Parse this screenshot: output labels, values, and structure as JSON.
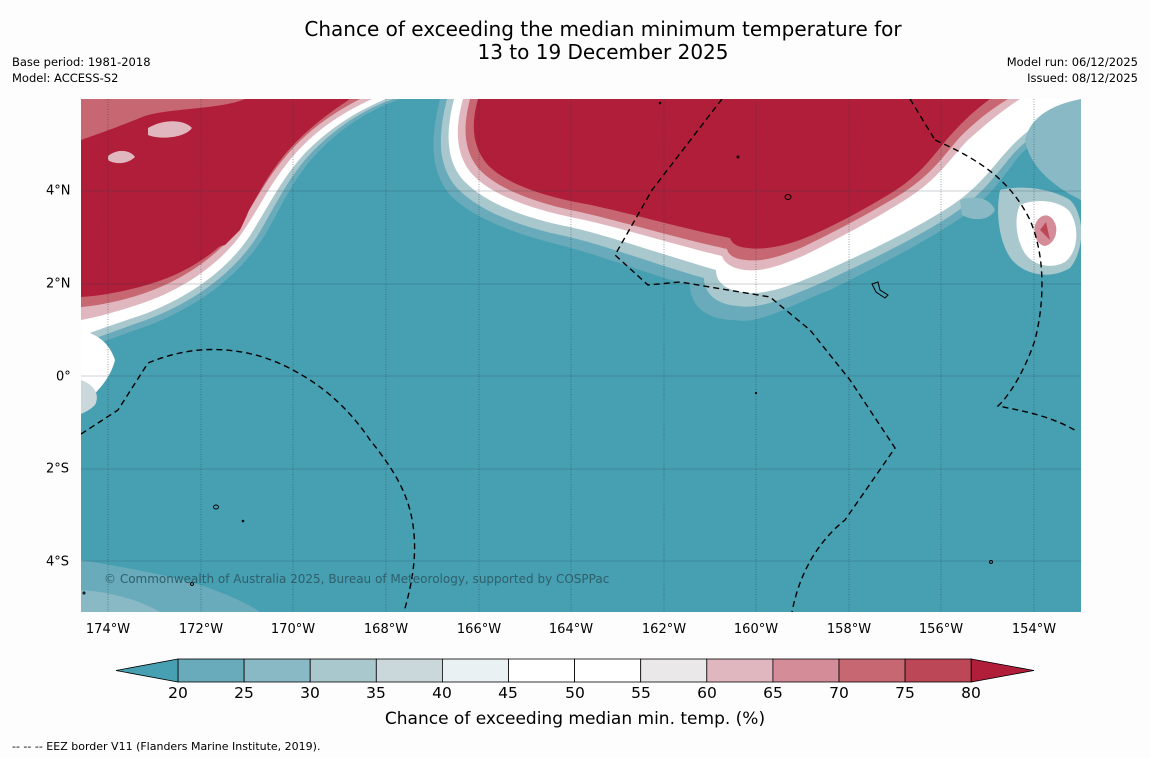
{
  "title_line1": "Chance of exceeding the median minimum temperature for",
  "title_line2": "13 to 19 December 2025",
  "base_period": "Base period: 1981-2018",
  "model": "Model: ACCESS-S2",
  "model_run": "Model run: 06/12/2025",
  "issued": "Issued: 08/12/2025",
  "longitude_labels": [
    "174°W",
    "172°W",
    "170°W",
    "168°W",
    "166°W",
    "164°W",
    "162°W",
    "160°W",
    "158°W",
    "156°W",
    "154°W"
  ],
  "latitude_labels": [
    "4°N",
    "2°N",
    "0°",
    "2°S",
    "4°S"
  ],
  "copyright": "© Commonwealth of Australia 2025, Bureau of Meteorology, supported by COSPPac",
  "colorbar": {
    "title": "Chance of exceeding median min. temp. (%)",
    "ticks": [
      "20",
      "25",
      "30",
      "35",
      "40",
      "45",
      "50",
      "55",
      "60",
      "65",
      "70",
      "75",
      "80"
    ],
    "colors": {
      "below_20": "#47a0b2",
      "20_25": "#6aabbb",
      "25_30": "#88b9c4",
      "30_35": "#a9c8cd",
      "35_40": "#cad8dc",
      "40_45": "#eaf1f2",
      "45_55": "#ffffff",
      "55_60": "#ebe8e9",
      "60_65": "#e0b7be",
      "65_70": "#d48d98",
      "70_75": "#c76771",
      "75_80": "#bc4756",
      "above_80": "#b01e3a"
    }
  },
  "footnote": "--  --  -- EEZ border V11 (Flanders Marine Institute, 2019)."
}
